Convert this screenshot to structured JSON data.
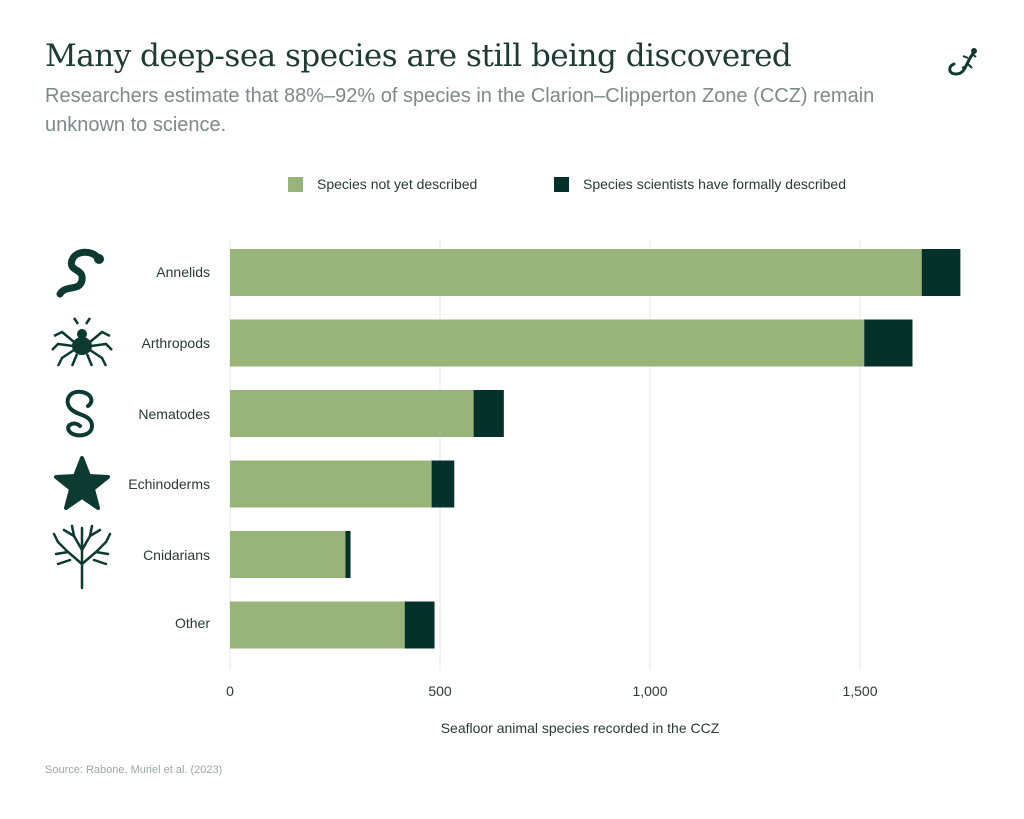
{
  "header": {
    "title": "Many deep-sea species are still being discovered",
    "subtitle": "Researchers estimate that 88%–92% of species in the Clarion–Clipperton Zone (CCZ) remain unknown to science.",
    "logo_icon": "gecko-icon"
  },
  "source": "Source: Rabone, Muriel et al. (2023)",
  "chart_data": {
    "type": "bar",
    "orientation": "horizontal",
    "stacked": true,
    "title": "Many deep-sea species are still being discovered",
    "xlabel": "Seafloor animal species recorded in the CCZ",
    "ylabel": "",
    "xlim": [
      0,
      1750
    ],
    "xticks": [
      0,
      500,
      1000,
      1500
    ],
    "xtick_labels": [
      "0",
      "500",
      "1,000",
      "1,500"
    ],
    "grid": "vertical",
    "legend_position": "top",
    "categories": [
      "Annelids",
      "Arthropods",
      "Nematodes",
      "Echinoderms",
      "Cnidarians",
      "Other"
    ],
    "category_icons": [
      "worm-icon",
      "spider-icon",
      "nematode-icon",
      "starfish-icon",
      "coral-icon",
      ""
    ],
    "series": [
      {
        "name": "Species not yet described",
        "color": "#98b47a",
        "values": [
          1647,
          1510,
          580,
          480,
          275,
          416
        ]
      },
      {
        "name": "Species scientists have formally described",
        "color": "#04312a",
        "values": [
          92,
          115,
          72,
          54,
          12,
          71
        ]
      }
    ]
  }
}
